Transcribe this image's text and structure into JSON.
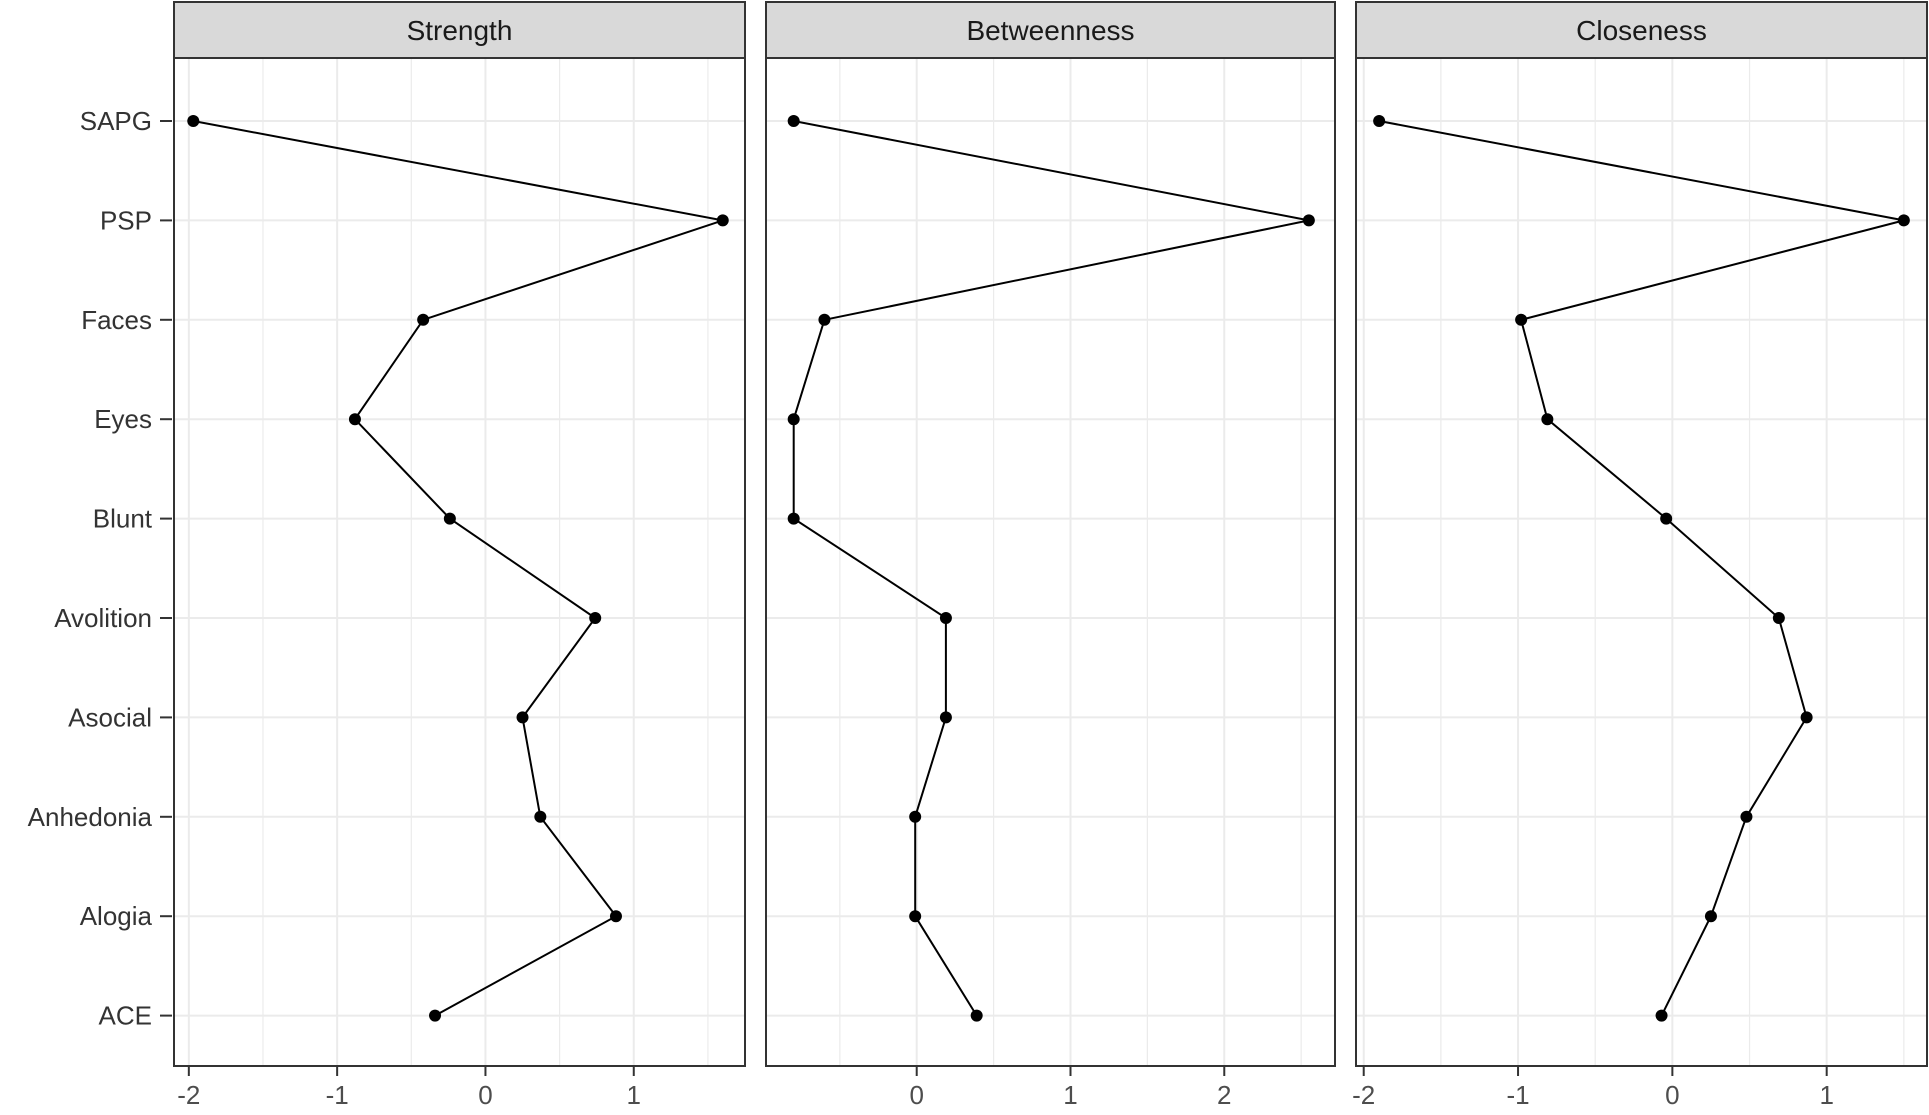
{
  "chart_data": {
    "type": "line",
    "categories": [
      "SAPG",
      "PSP",
      "Faces",
      "Eyes",
      "Blunt",
      "Avolition",
      "Asocial",
      "Anhedonia",
      "Alogia",
      "ACE"
    ],
    "panels": [
      {
        "name": "Strength",
        "xlim": [
          -2.1,
          1.75
        ],
        "x_ticks": [
          -2,
          -1,
          0,
          1
        ],
        "x_tick_labels": [
          "-2",
          "-1",
          "0",
          "1"
        ],
        "values": [
          -1.97,
          1.6,
          -0.42,
          -0.88,
          -0.24,
          0.74,
          0.25,
          0.37,
          0.88,
          -0.34
        ]
      },
      {
        "name": "Betweenness",
        "xlim": [
          -0.98,
          2.72
        ],
        "x_ticks": [
          0,
          1,
          2
        ],
        "x_tick_labels": [
          "0",
          "1",
          "2"
        ],
        "values": [
          -0.8,
          2.55,
          -0.6,
          -0.8,
          -0.8,
          0.19,
          0.19,
          -0.01,
          -0.01,
          0.39
        ]
      },
      {
        "name": "Closeness",
        "xlim": [
          -2.05,
          1.65
        ],
        "x_ticks": [
          -2,
          -1,
          0,
          1
        ],
        "x_tick_labels": [
          "-2",
          "-1",
          "0",
          "1"
        ],
        "values": [
          -1.9,
          1.5,
          -0.98,
          -0.81,
          -0.04,
          0.69,
          0.87,
          0.48,
          0.25,
          -0.07
        ]
      }
    ],
    "grid": true,
    "legend": "none",
    "xlabel": "",
    "ylabel": "",
    "title": ""
  }
}
